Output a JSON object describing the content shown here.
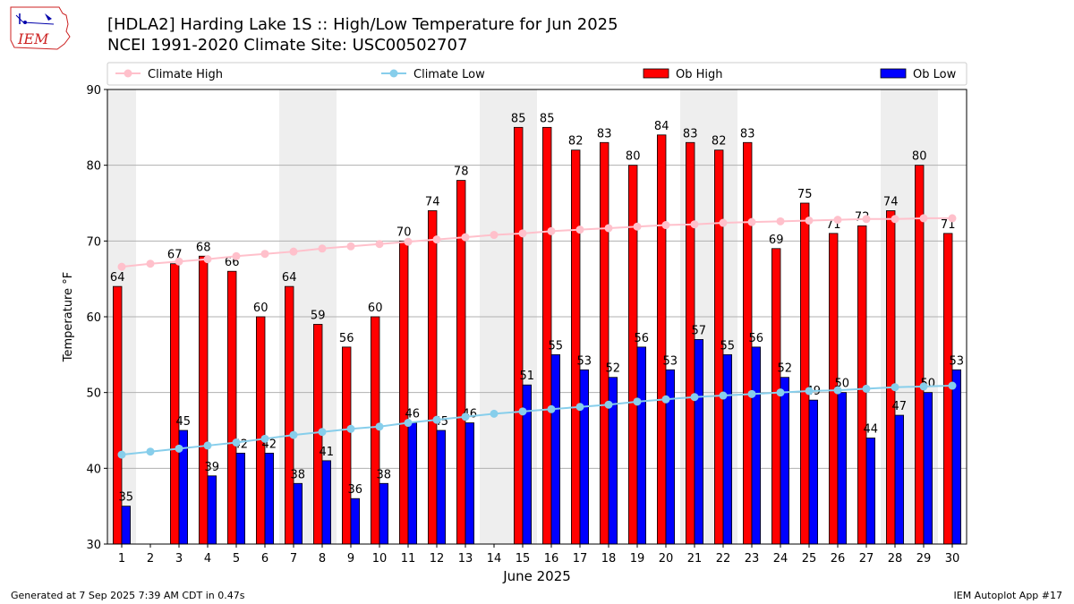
{
  "header": {
    "title_line1": "[HDLA2] Harding Lake 1S :: High/Low Temperature for Jun 2025",
    "title_line2": "NCEI 1991-2020 Climate Site: USC00502707",
    "logo_text": "IEM"
  },
  "footer": {
    "generated": "Generated at 7 Sep 2025 7:39 AM CDT in 0.47s",
    "app": "IEM Autoplot App #17"
  },
  "colors": {
    "ob_high": "#ff0000",
    "ob_low": "#0000ff",
    "climate_high": "#ffc0cb",
    "climate_low": "#87ceeb",
    "weekend_shade": "#eeeeee"
  },
  "chart_data": {
    "type": "bar",
    "xlabel": "June 2025",
    "ylabel": "Temperature °F",
    "ylim": [
      30,
      90
    ],
    "yticks": [
      30,
      40,
      50,
      60,
      70,
      80,
      90
    ],
    "grid": "horizontal",
    "legend_position": "top",
    "categories": [
      1,
      2,
      3,
      4,
      5,
      6,
      7,
      8,
      9,
      10,
      11,
      12,
      13,
      14,
      15,
      16,
      17,
      18,
      19,
      20,
      21,
      22,
      23,
      24,
      25,
      26,
      27,
      28,
      29,
      30
    ],
    "shaded_days": [
      1,
      7,
      8,
      14,
      15,
      21,
      22,
      28,
      29
    ],
    "series": [
      {
        "name": "Climate High",
        "kind": "line",
        "values": [
          66.6,
          67.0,
          67.3,
          67.6,
          68.0,
          68.3,
          68.6,
          69.0,
          69.3,
          69.6,
          69.9,
          70.2,
          70.5,
          70.8,
          71.0,
          71.3,
          71.5,
          71.7,
          71.9,
          72.1,
          72.2,
          72.4,
          72.5,
          72.6,
          72.7,
          72.8,
          72.9,
          72.9,
          73.0,
          73.0
        ]
      },
      {
        "name": "Climate Low",
        "kind": "line",
        "values": [
          41.8,
          42.2,
          42.6,
          43.0,
          43.4,
          43.9,
          44.4,
          44.8,
          45.2,
          45.5,
          46.0,
          46.4,
          46.8,
          47.2,
          47.5,
          47.8,
          48.1,
          48.4,
          48.8,
          49.1,
          49.4,
          49.6,
          49.8,
          50.0,
          50.2,
          50.3,
          50.5,
          50.7,
          50.8,
          50.9
        ]
      },
      {
        "name": "Ob High",
        "kind": "bar",
        "values": [
          64,
          null,
          67,
          68,
          66,
          60,
          64,
          59,
          56,
          60,
          70,
          74,
          78,
          null,
          85,
          85,
          82,
          83,
          80,
          84,
          83,
          82,
          83,
          69,
          75,
          71,
          72,
          74,
          80,
          71
        ]
      },
      {
        "name": "Ob Low",
        "kind": "bar",
        "values": [
          35,
          null,
          45,
          39,
          42,
          42,
          38,
          41,
          36,
          38,
          46,
          45,
          46,
          null,
          51,
          55,
          53,
          52,
          56,
          53,
          57,
          55,
          56,
          52,
          49,
          50,
          44,
          47,
          50,
          53
        ]
      }
    ]
  }
}
